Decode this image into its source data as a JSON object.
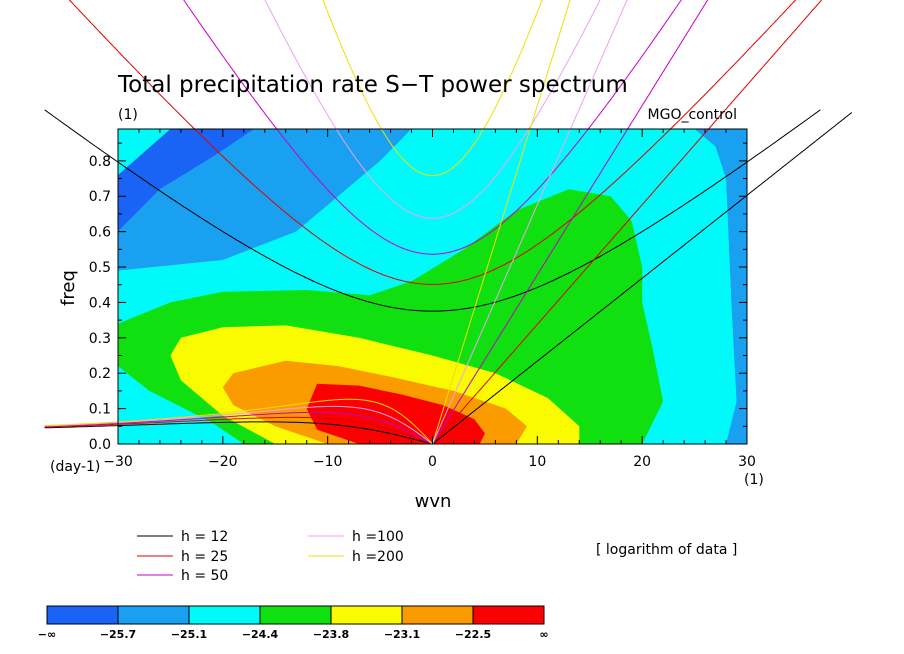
{
  "chart_data": {
    "type": "heatmap",
    "title": "Total precipitation rate S−T power spectrum",
    "subtitle_left": "(1)",
    "subtitle_right": "MGO_control",
    "xlabel": "wvn",
    "ylabel": "freq",
    "x_unit": "(1)",
    "y_unit": "(day-1)",
    "xlim": [
      -30,
      30
    ],
    "ylim": [
      0,
      0.89
    ],
    "xticks": [
      -30,
      -20,
      -10,
      0,
      10,
      20,
      30
    ],
    "yticks": [
      0.0,
      0.1,
      0.2,
      0.3,
      0.4,
      0.5,
      0.6,
      0.7,
      0.8
    ],
    "xtick_labels": [
      "−30",
      "−20",
      "−10",
      "0",
      "10",
      "20",
      "30"
    ],
    "ytick_labels": [
      "0.0",
      "0.1",
      "0.2",
      "0.3",
      "0.4",
      "0.5",
      "0.6",
      "0.7",
      "0.8"
    ],
    "note": "[ logarithm of data ]",
    "colorbar": {
      "levels": [
        "−∞",
        "−25.7",
        "−25.1",
        "−24.4",
        "−23.8",
        "−23.1",
        "−22.5",
        "∞"
      ],
      "colors": [
        "#1a64f5",
        "#1aa0f0",
        "#00fafa",
        "#10e010",
        "#fafa00",
        "#fa9c00",
        "#fa0000"
      ]
    },
    "legend": [
      {
        "label": "h = 12",
        "color": "#000000",
        "h": 12
      },
      {
        "label": "h = 25",
        "color": "#e00000",
        "h": 25
      },
      {
        "label": "h = 50",
        "color": "#c800c8",
        "h": 50
      },
      {
        "label": "h =100",
        "color": "#f0a0f0",
        "h": 100
      },
      {
        "label": "h =200",
        "color": "#f0e000",
        "h": 200
      }
    ],
    "regions": [
      {
        "level": 1,
        "name": "dark-blue",
        "points": [
          [
            -30,
            0.76
          ],
          [
            -25,
            0.89
          ],
          [
            -17,
            0.89
          ],
          [
            -21,
            0.81
          ],
          [
            -26,
            0.72
          ],
          [
            -30,
            0.6
          ]
        ]
      },
      {
        "level": 2,
        "name": "light-blue",
        "points": [
          [
            -30,
            0.6
          ],
          [
            -26,
            0.72
          ],
          [
            -21,
            0.81
          ],
          [
            -17,
            0.89
          ],
          [
            -2,
            0.89
          ],
          [
            -5,
            0.8
          ],
          [
            -9,
            0.7
          ],
          [
            -13,
            0.6
          ],
          [
            -20,
            0.52
          ],
          [
            -30,
            0.49
          ]
        ]
      },
      {
        "level": 2,
        "name": "light-blue-right",
        "points": [
          [
            25,
            0.89
          ],
          [
            30,
            0.89
          ],
          [
            30,
            0.0
          ],
          [
            28,
            0.0
          ],
          [
            29,
            0.12
          ],
          [
            28.5,
            0.4
          ],
          [
            28,
            0.75
          ],
          [
            27,
            0.84
          ]
        ]
      },
      {
        "level": 3,
        "name": "cyan",
        "points": [
          [
            -30,
            0.49
          ],
          [
            -20,
            0.52
          ],
          [
            -13,
            0.6
          ],
          [
            -9,
            0.7
          ],
          [
            -5,
            0.8
          ],
          [
            -2,
            0.89
          ],
          [
            25,
            0.89
          ],
          [
            27,
            0.84
          ],
          [
            28,
            0.75
          ],
          [
            28.5,
            0.4
          ],
          [
            29,
            0.12
          ],
          [
            28,
            0.0
          ],
          [
            -30,
            0.0
          ]
        ]
      },
      {
        "level": 4,
        "name": "green",
        "points": [
          [
            -30,
            0.34
          ],
          [
            -25,
            0.4
          ],
          [
            -20,
            0.43
          ],
          [
            -12,
            0.435
          ],
          [
            -6,
            0.42
          ],
          [
            -2,
            0.46
          ],
          [
            3,
            0.55
          ],
          [
            8,
            0.66
          ],
          [
            13,
            0.72
          ],
          [
            17,
            0.7
          ],
          [
            19,
            0.63
          ],
          [
            20,
            0.5
          ],
          [
            20,
            0.4
          ],
          [
            21,
            0.27
          ],
          [
            22,
            0.12
          ],
          [
            21,
            0.06
          ],
          [
            20,
            0.0
          ],
          [
            -18,
            0.0
          ],
          [
            -21,
            0.06
          ],
          [
            -27,
            0.15
          ],
          [
            -30,
            0.22
          ]
        ]
      },
      {
        "level": 5,
        "name": "yellow",
        "points": [
          [
            -24,
            0.3
          ],
          [
            -20,
            0.33
          ],
          [
            -14,
            0.335
          ],
          [
            -7,
            0.3
          ],
          [
            0,
            0.25
          ],
          [
            6,
            0.2
          ],
          [
            11,
            0.13
          ],
          [
            14,
            0.05
          ],
          [
            14,
            0.0
          ],
          [
            -15,
            0.0
          ],
          [
            -20,
            0.08
          ],
          [
            -24,
            0.18
          ],
          [
            -25,
            0.25
          ]
        ]
      },
      {
        "level": 6,
        "name": "orange",
        "points": [
          [
            -19,
            0.2
          ],
          [
            -14,
            0.235
          ],
          [
            -9,
            0.22
          ],
          [
            -4,
            0.19
          ],
          [
            2,
            0.15
          ],
          [
            7,
            0.1
          ],
          [
            9,
            0.05
          ],
          [
            8,
            0.0
          ],
          [
            -10,
            0.0
          ],
          [
            -15,
            0.05
          ],
          [
            -19,
            0.11
          ],
          [
            -20,
            0.16
          ]
        ]
      },
      {
        "level": 7,
        "name": "red",
        "points": [
          [
            -11,
            0.17
          ],
          [
            -7,
            0.165
          ],
          [
            -3,
            0.14
          ],
          [
            1,
            0.11
          ],
          [
            4,
            0.07
          ],
          [
            5,
            0.03
          ],
          [
            4.5,
            0.0
          ],
          [
            -7,
            0.0
          ],
          [
            -11,
            0.04
          ],
          [
            -12,
            0.1
          ]
        ]
      }
    ]
  }
}
